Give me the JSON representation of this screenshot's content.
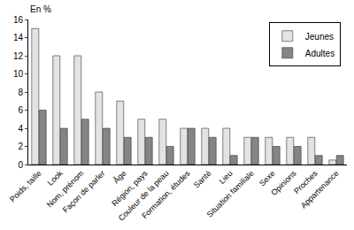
{
  "chart_data": {
    "type": "bar",
    "y_label": "En %",
    "categories": [
      "Poids, taille",
      "Look",
      "Nom, prénom",
      "Façon de parler",
      "Âge",
      "Région, pays",
      "Couleur de la peau",
      "Formation, études",
      "Santé",
      "Lieu",
      "Situation familiale",
      "Sexe",
      "Opinions",
      "Proches",
      "Appartenance"
    ],
    "series": [
      {
        "name": "Jeunes",
        "color": "#e3e3e3",
        "values": [
          15,
          12,
          12,
          8,
          7,
          5,
          5,
          4,
          4,
          4,
          3,
          3,
          3,
          3,
          0.5
        ]
      },
      {
        "name": "Adultes",
        "color": "#858585",
        "values": [
          6,
          4,
          5,
          4,
          3,
          3,
          2,
          4,
          3,
          1,
          3,
          2,
          2,
          1,
          1
        ]
      }
    ],
    "ylim": [
      0,
      16
    ],
    "yticks": [
      0,
      2,
      4,
      6,
      8,
      10,
      12,
      14,
      16
    ],
    "grid": false,
    "legend": "top right"
  }
}
